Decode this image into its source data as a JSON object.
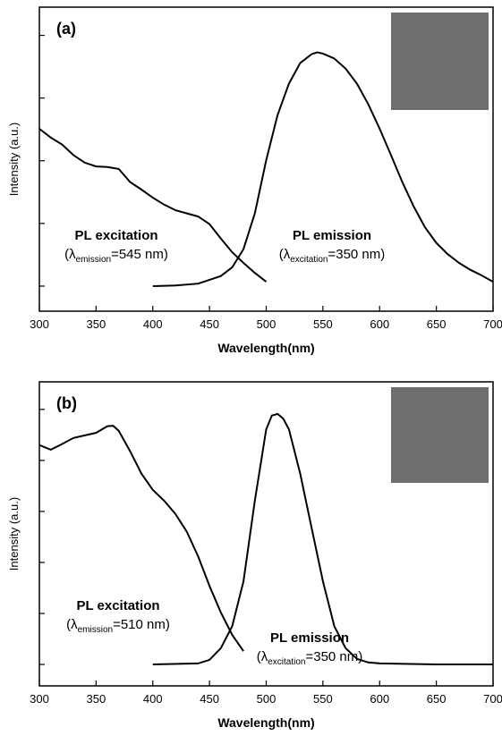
{
  "chart_data": [
    {
      "type": "line",
      "panel_label": "(a)",
      "xlabel": "Wavelength(nm)",
      "ylabel": "Intensity (a.u.)",
      "xlim": [
        300,
        700
      ],
      "xticks": [
        300,
        350,
        400,
        450,
        500,
        550,
        600,
        650,
        700
      ],
      "ylim": [
        -0.4,
        4.45
      ],
      "yticks": [
        0,
        1,
        2,
        3,
        4
      ],
      "color": "#000000",
      "series": [
        {
          "x": [
            300,
            310,
            320,
            330,
            340,
            350,
            360,
            370,
            380,
            390,
            400,
            410,
            420,
            430,
            440,
            450,
            460,
            470,
            480,
            490,
            500
          ],
          "values": [
            2.51,
            2.37,
            2.26,
            2.09,
            1.97,
            1.91,
            1.9,
            1.87,
            1.66,
            1.54,
            1.41,
            1.3,
            1.21,
            1.16,
            1.11,
            0.99,
            0.76,
            0.54,
            0.37,
            0.21,
            0.07
          ]
        },
        {
          "x": [
            400,
            420,
            440,
            460,
            470,
            480,
            490,
            500,
            510,
            520,
            530,
            540,
            545,
            550,
            560,
            570,
            580,
            590,
            600,
            610,
            620,
            630,
            640,
            650,
            660,
            670,
            680,
            690,
            700
          ],
          "values": [
            0,
            0.01,
            0.04,
            0.16,
            0.3,
            0.59,
            1.16,
            2.01,
            2.73,
            3.23,
            3.56,
            3.7,
            3.73,
            3.71,
            3.63,
            3.47,
            3.23,
            2.9,
            2.51,
            2.09,
            1.66,
            1.27,
            0.94,
            0.69,
            0.51,
            0.37,
            0.26,
            0.17,
            0.07
          ]
        }
      ],
      "annotations": [
        {
          "title": "PL excitation",
          "prefix": "(λ",
          "sub": "emission",
          "suffix": "=545 nm)"
        },
        {
          "title": "PL emission",
          "prefix": "(λ",
          "sub": "excitation",
          "suffix": "=350 nm)"
        }
      ]
    },
    {
      "type": "line",
      "panel_label": "(b)",
      "xlabel": "Wavelength(nm)",
      "ylabel": "Intensity (a.u.)",
      "xlim": [
        300,
        700
      ],
      "xticks": [
        300,
        350,
        400,
        450,
        500,
        550,
        600,
        650,
        700
      ],
      "ylim": [
        -0.42,
        5.54
      ],
      "yticks": [
        0,
        1,
        2,
        3,
        4,
        5
      ],
      "color": "#000000",
      "series": [
        {
          "x": [
            300,
            310,
            320,
            330,
            340,
            350,
            360,
            365,
            370,
            380,
            390,
            400,
            410,
            420,
            430,
            440,
            450,
            460,
            470,
            480
          ],
          "values": [
            4.3,
            4.21,
            4.32,
            4.44,
            4.49,
            4.54,
            4.67,
            4.68,
            4.58,
            4.18,
            3.74,
            3.42,
            3.21,
            2.95,
            2.6,
            2.12,
            1.54,
            1.02,
            0.58,
            0.26
          ]
        },
        {
          "x": [
            400,
            440,
            450,
            460,
            470,
            480,
            490,
            500,
            505,
            510,
            515,
            520,
            530,
            540,
            550,
            560,
            570,
            580,
            590,
            600,
            650,
            700
          ],
          "values": [
            0,
            0.02,
            0.09,
            0.32,
            0.75,
            1.63,
            3.21,
            4.61,
            4.88,
            4.91,
            4.82,
            4.61,
            3.74,
            2.68,
            1.63,
            0.75,
            0.32,
            0.11,
            0.04,
            0.02,
            0,
            0
          ]
        }
      ],
      "annotations": [
        {
          "title": "PL excitation",
          "prefix": "(λ",
          "sub": "emission",
          "suffix": "=510 nm)"
        },
        {
          "title": "PL emission",
          "prefix": "(λ",
          "sub": "excitation",
          "suffix": "=350 nm)"
        }
      ]
    }
  ]
}
